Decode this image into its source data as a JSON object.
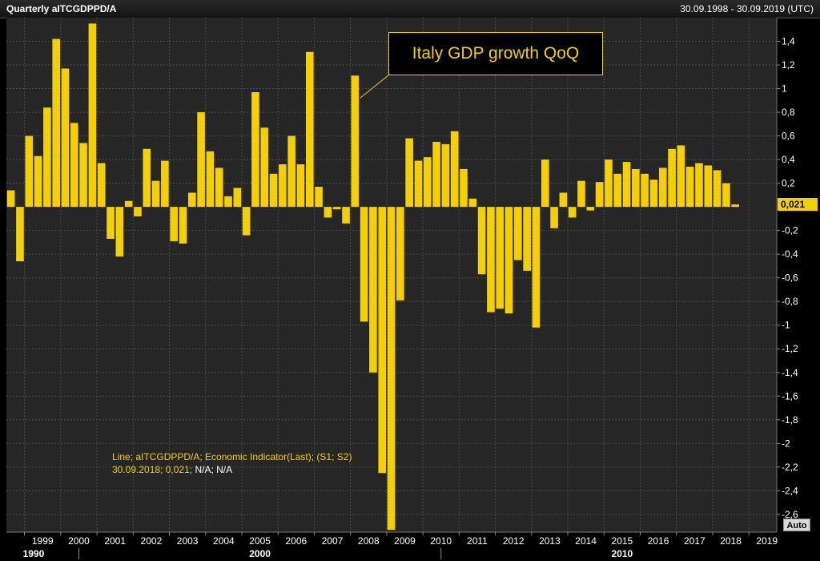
{
  "header": {
    "title": "Quarterly aITCGDPPD/A",
    "date_range": "30.09.1998 - 30.09.2019 (UTC)"
  },
  "annotation": {
    "text": "Italy GDP growth QoQ"
  },
  "legend": {
    "line1": "Line; aITCGDPPD/A; Economic Indicator(Last); (S1; S2)",
    "line2_prefix": "30.09.2018; 0,021;",
    "line2_na": "N/A; N/A"
  },
  "controls": {
    "auto_label": "Auto"
  },
  "last_value_label": "0,021",
  "colors": {
    "bar": "#f5d000",
    "background": "#262626",
    "grid": "#4a4a4a"
  },
  "chart_data": {
    "type": "bar",
    "title": "Italy GDP growth QoQ",
    "x_start": "1998-Q3",
    "x": [
      "1998-Q3",
      "1998-Q4",
      "1999-Q1",
      "1999-Q2",
      "1999-Q3",
      "1999-Q4",
      "2000-Q1",
      "2000-Q2",
      "2000-Q3",
      "2000-Q4",
      "2001-Q1",
      "2001-Q2",
      "2001-Q3",
      "2001-Q4",
      "2002-Q1",
      "2002-Q2",
      "2002-Q3",
      "2002-Q4",
      "2003-Q1",
      "2003-Q2",
      "2003-Q3",
      "2003-Q4",
      "2004-Q1",
      "2004-Q2",
      "2004-Q3",
      "2004-Q4",
      "2005-Q1",
      "2005-Q2",
      "2005-Q3",
      "2005-Q4",
      "2006-Q1",
      "2006-Q2",
      "2006-Q3",
      "2006-Q4",
      "2007-Q1",
      "2007-Q2",
      "2007-Q3",
      "2007-Q4",
      "2008-Q1",
      "2008-Q2",
      "2008-Q3",
      "2008-Q4",
      "2009-Q1",
      "2009-Q2",
      "2009-Q3",
      "2009-Q4",
      "2010-Q1",
      "2010-Q2",
      "2010-Q3",
      "2010-Q4",
      "2011-Q1",
      "2011-Q2",
      "2011-Q3",
      "2011-Q4",
      "2012-Q1",
      "2012-Q2",
      "2012-Q3",
      "2012-Q4",
      "2013-Q1",
      "2013-Q2",
      "2013-Q3",
      "2013-Q4",
      "2014-Q1",
      "2014-Q2",
      "2014-Q3",
      "2014-Q4",
      "2015-Q1",
      "2015-Q2",
      "2015-Q3",
      "2015-Q4",
      "2016-Q1",
      "2016-Q2",
      "2016-Q3",
      "2016-Q4",
      "2017-Q1",
      "2017-Q2",
      "2017-Q3",
      "2017-Q4",
      "2018-Q1",
      "2018-Q2",
      "2018-Q3"
    ],
    "values": [
      0.14,
      -0.46,
      0.6,
      0.43,
      0.84,
      1.42,
      1.17,
      0.71,
      0.54,
      1.55,
      0.37,
      -0.27,
      -0.42,
      0.05,
      -0.08,
      0.49,
      0.22,
      0.39,
      -0.29,
      -0.31,
      0.12,
      0.8,
      0.47,
      0.33,
      0.09,
      0.16,
      -0.24,
      0.97,
      0.67,
      0.28,
      0.36,
      0.6,
      0.36,
      1.31,
      0.17,
      -0.09,
      -0.02,
      -0.14,
      1.11,
      -0.97,
      -1.4,
      -2.25,
      -2.73,
      -0.79,
      0.58,
      0.39,
      0.42,
      0.55,
      0.53,
      0.64,
      0.32,
      0.07,
      -0.57,
      -0.89,
      -0.86,
      -0.9,
      -0.45,
      -0.54,
      -1.02,
      0.4,
      -0.18,
      0.12,
      -0.09,
      0.22,
      -0.03,
      0.21,
      0.4,
      0.28,
      0.38,
      0.32,
      0.28,
      0.23,
      0.33,
      0.49,
      0.52,
      0.34,
      0.37,
      0.35,
      0.31,
      0.2,
      0.021
    ],
    "ylim": [
      -2.75,
      1.6
    ],
    "y_ticks": [
      1.4,
      1.2,
      1,
      0.8,
      0.6,
      0.4,
      0.2,
      -0.2,
      -0.4,
      -0.6,
      -0.8,
      -1,
      -1.2,
      -1.4,
      -1.6,
      -1.8,
      -2,
      -2.2,
      -2.4,
      -2.6
    ],
    "y_tick_labels": [
      "1,4",
      "1,2",
      "1",
      "0,8",
      "0,6",
      "0,4",
      "0,2",
      "-0,2",
      "-0,4",
      "-0,6",
      "-0,8",
      "-1",
      "-1,2",
      "-1,4",
      "-1,6",
      "-1,8",
      "-2",
      "-2,2",
      "-2,4",
      "-2,6"
    ],
    "x_tick_labels": [
      "1999",
      "2000",
      "2001",
      "2002",
      "2003",
      "2004",
      "2005",
      "2006",
      "2007",
      "2008",
      "2009",
      "2010",
      "2011",
      "2012",
      "2013",
      "2014",
      "2015",
      "2016",
      "2017",
      "2018",
      "2019"
    ],
    "decade_labels": [
      "1990",
      "2000",
      "2010"
    ],
    "legend_position": "bottom-left",
    "grid": true
  }
}
